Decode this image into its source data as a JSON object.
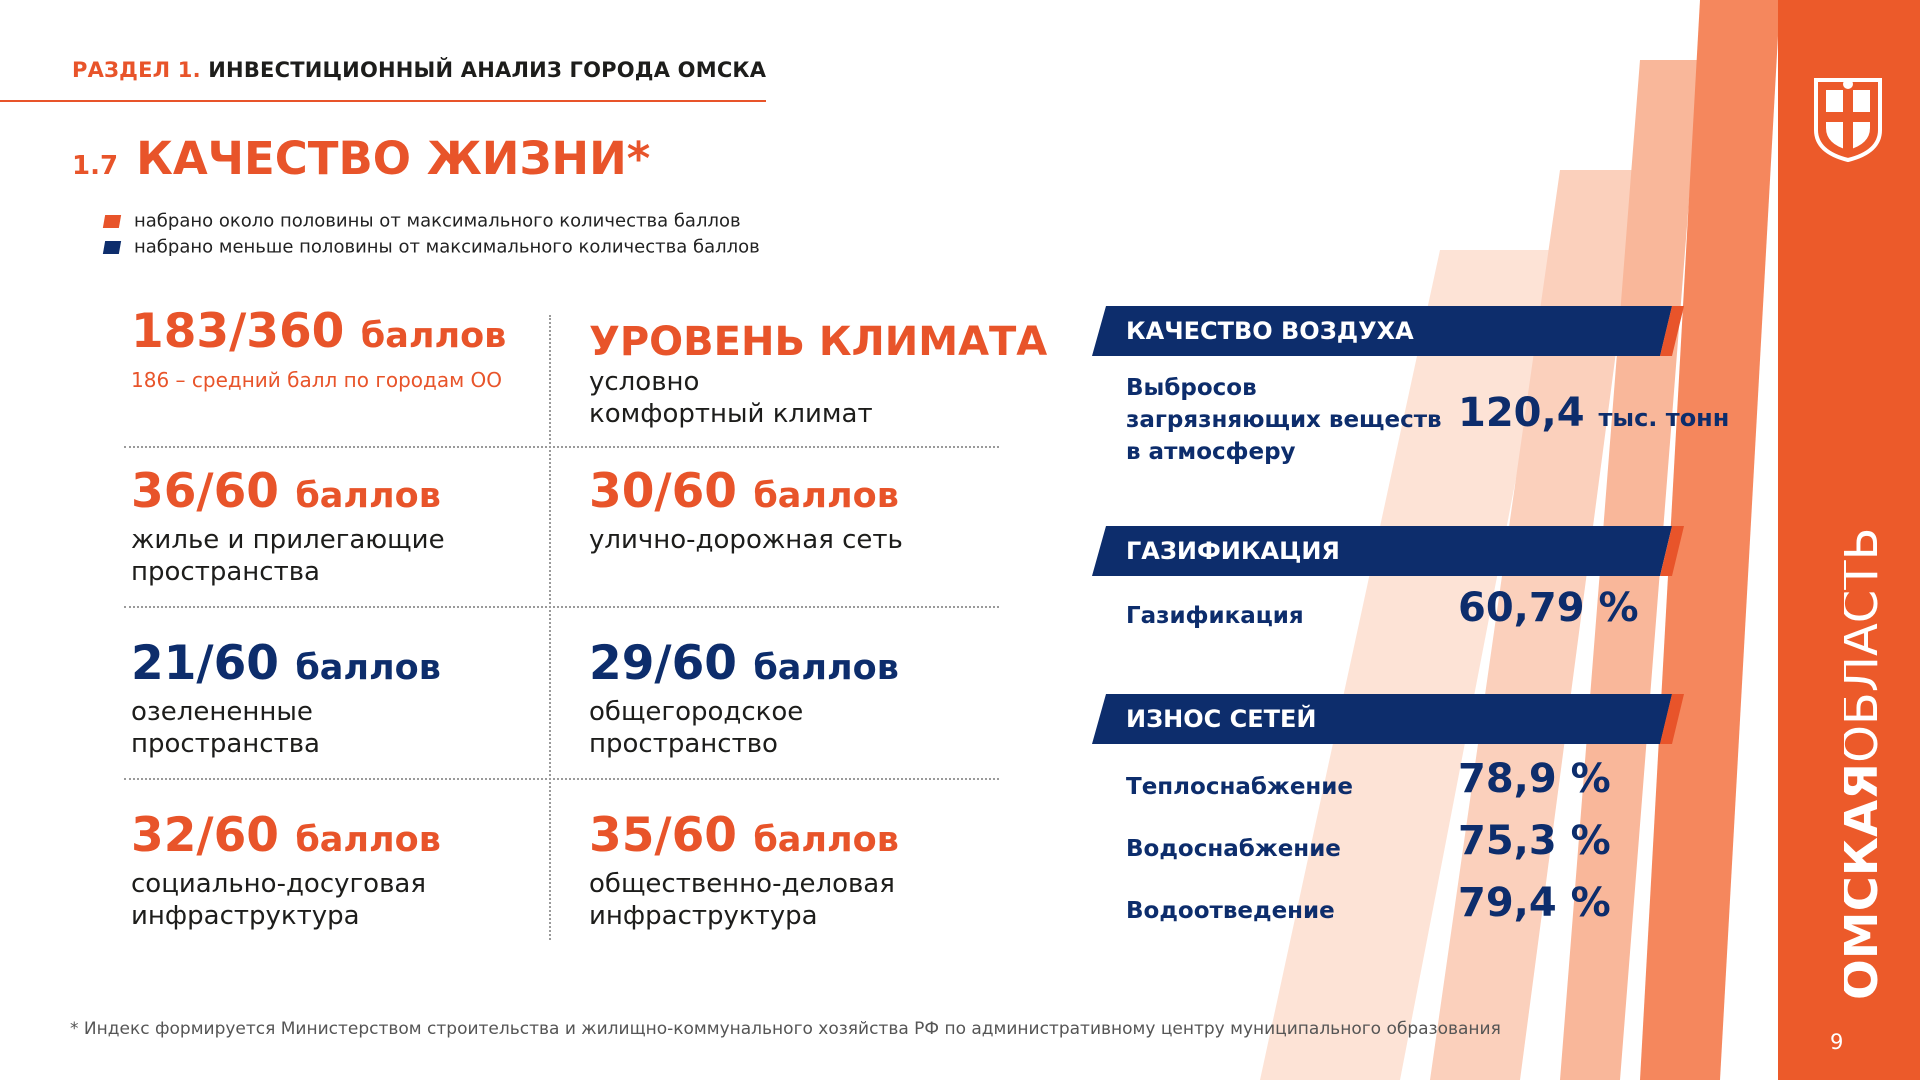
{
  "header": {
    "section_prefix": "РАЗДЕЛ 1.",
    "section_title": "ИНВЕСТИЦИОННЫЙ АНАЛИЗ ГОРОДА ОМСКА"
  },
  "heading": {
    "number": "1.7",
    "title": "КАЧЕСТВО ЖИЗНИ*"
  },
  "legend": [
    {
      "text": "набрано около половины от максимального количества баллов",
      "color": "#e8542a"
    },
    {
      "text": "набрано меньше половины от максимального количества баллов",
      "color": "#0d2d6c"
    }
  ],
  "scores": {
    "total": {
      "value": "183/360",
      "unit": "баллов",
      "note": "186 – средний балл по городам  ОО"
    },
    "climate": {
      "title": "УРОВЕНЬ КЛИМАТА",
      "line1": "условно",
      "line2": "комфортный климат"
    },
    "housing": {
      "value": "36/60",
      "unit": "баллов",
      "line1": "жилье и прилегающие",
      "line2": "пространства"
    },
    "roads": {
      "value": "30/60",
      "unit": "баллов",
      "line1": "улично-дорожная сеть"
    },
    "green": {
      "value": "21/60",
      "unit": "баллов",
      "line1": "озелененные",
      "line2": "пространства"
    },
    "public": {
      "value": "29/60",
      "unit": "баллов",
      "line1": "общегородское",
      "line2": "пространство"
    },
    "social": {
      "value": "32/60",
      "unit": "баллов",
      "line1": "социально-досуговая",
      "line2": "инфраструктура"
    },
    "business": {
      "value": "35/60",
      "unit": "баллов",
      "line1": "общественно-деловая",
      "line2": "инфраструктура"
    }
  },
  "right": {
    "air": {
      "banner": "КАЧЕСТВО ВОЗДУХА",
      "line1": "Выбросов",
      "line2": "загрязняющих веществ",
      "line3": "в атмосферу",
      "value": "120,4",
      "unit": "тыс. тонн"
    },
    "gas": {
      "banner": "ГАЗИФИКАЦИЯ",
      "label": "Газификация",
      "value": "60,79 %"
    },
    "networks": {
      "banner": "ИЗНОС СЕТЕЙ",
      "rows": [
        {
          "label": "Теплоснабжение",
          "value": "78,9 %"
        },
        {
          "label": "Водоснабжение",
          "value": "75,3 %"
        },
        {
          "label": "Водоотведение",
          "value": "79,4 %"
        }
      ]
    }
  },
  "footnote": "* Индекс формируется Министерством строительства и жилищно-коммунального хозяйства РФ по административному центру муниципального образования",
  "page_number": "9",
  "brand": {
    "text_bold": "ОМСКАЯ",
    "text_thin": "ОБЛАСТЬ"
  },
  "colors": {
    "orange": "#e8542a",
    "navy": "#0d2d6c",
    "sidebar": "#ec5a2a"
  }
}
